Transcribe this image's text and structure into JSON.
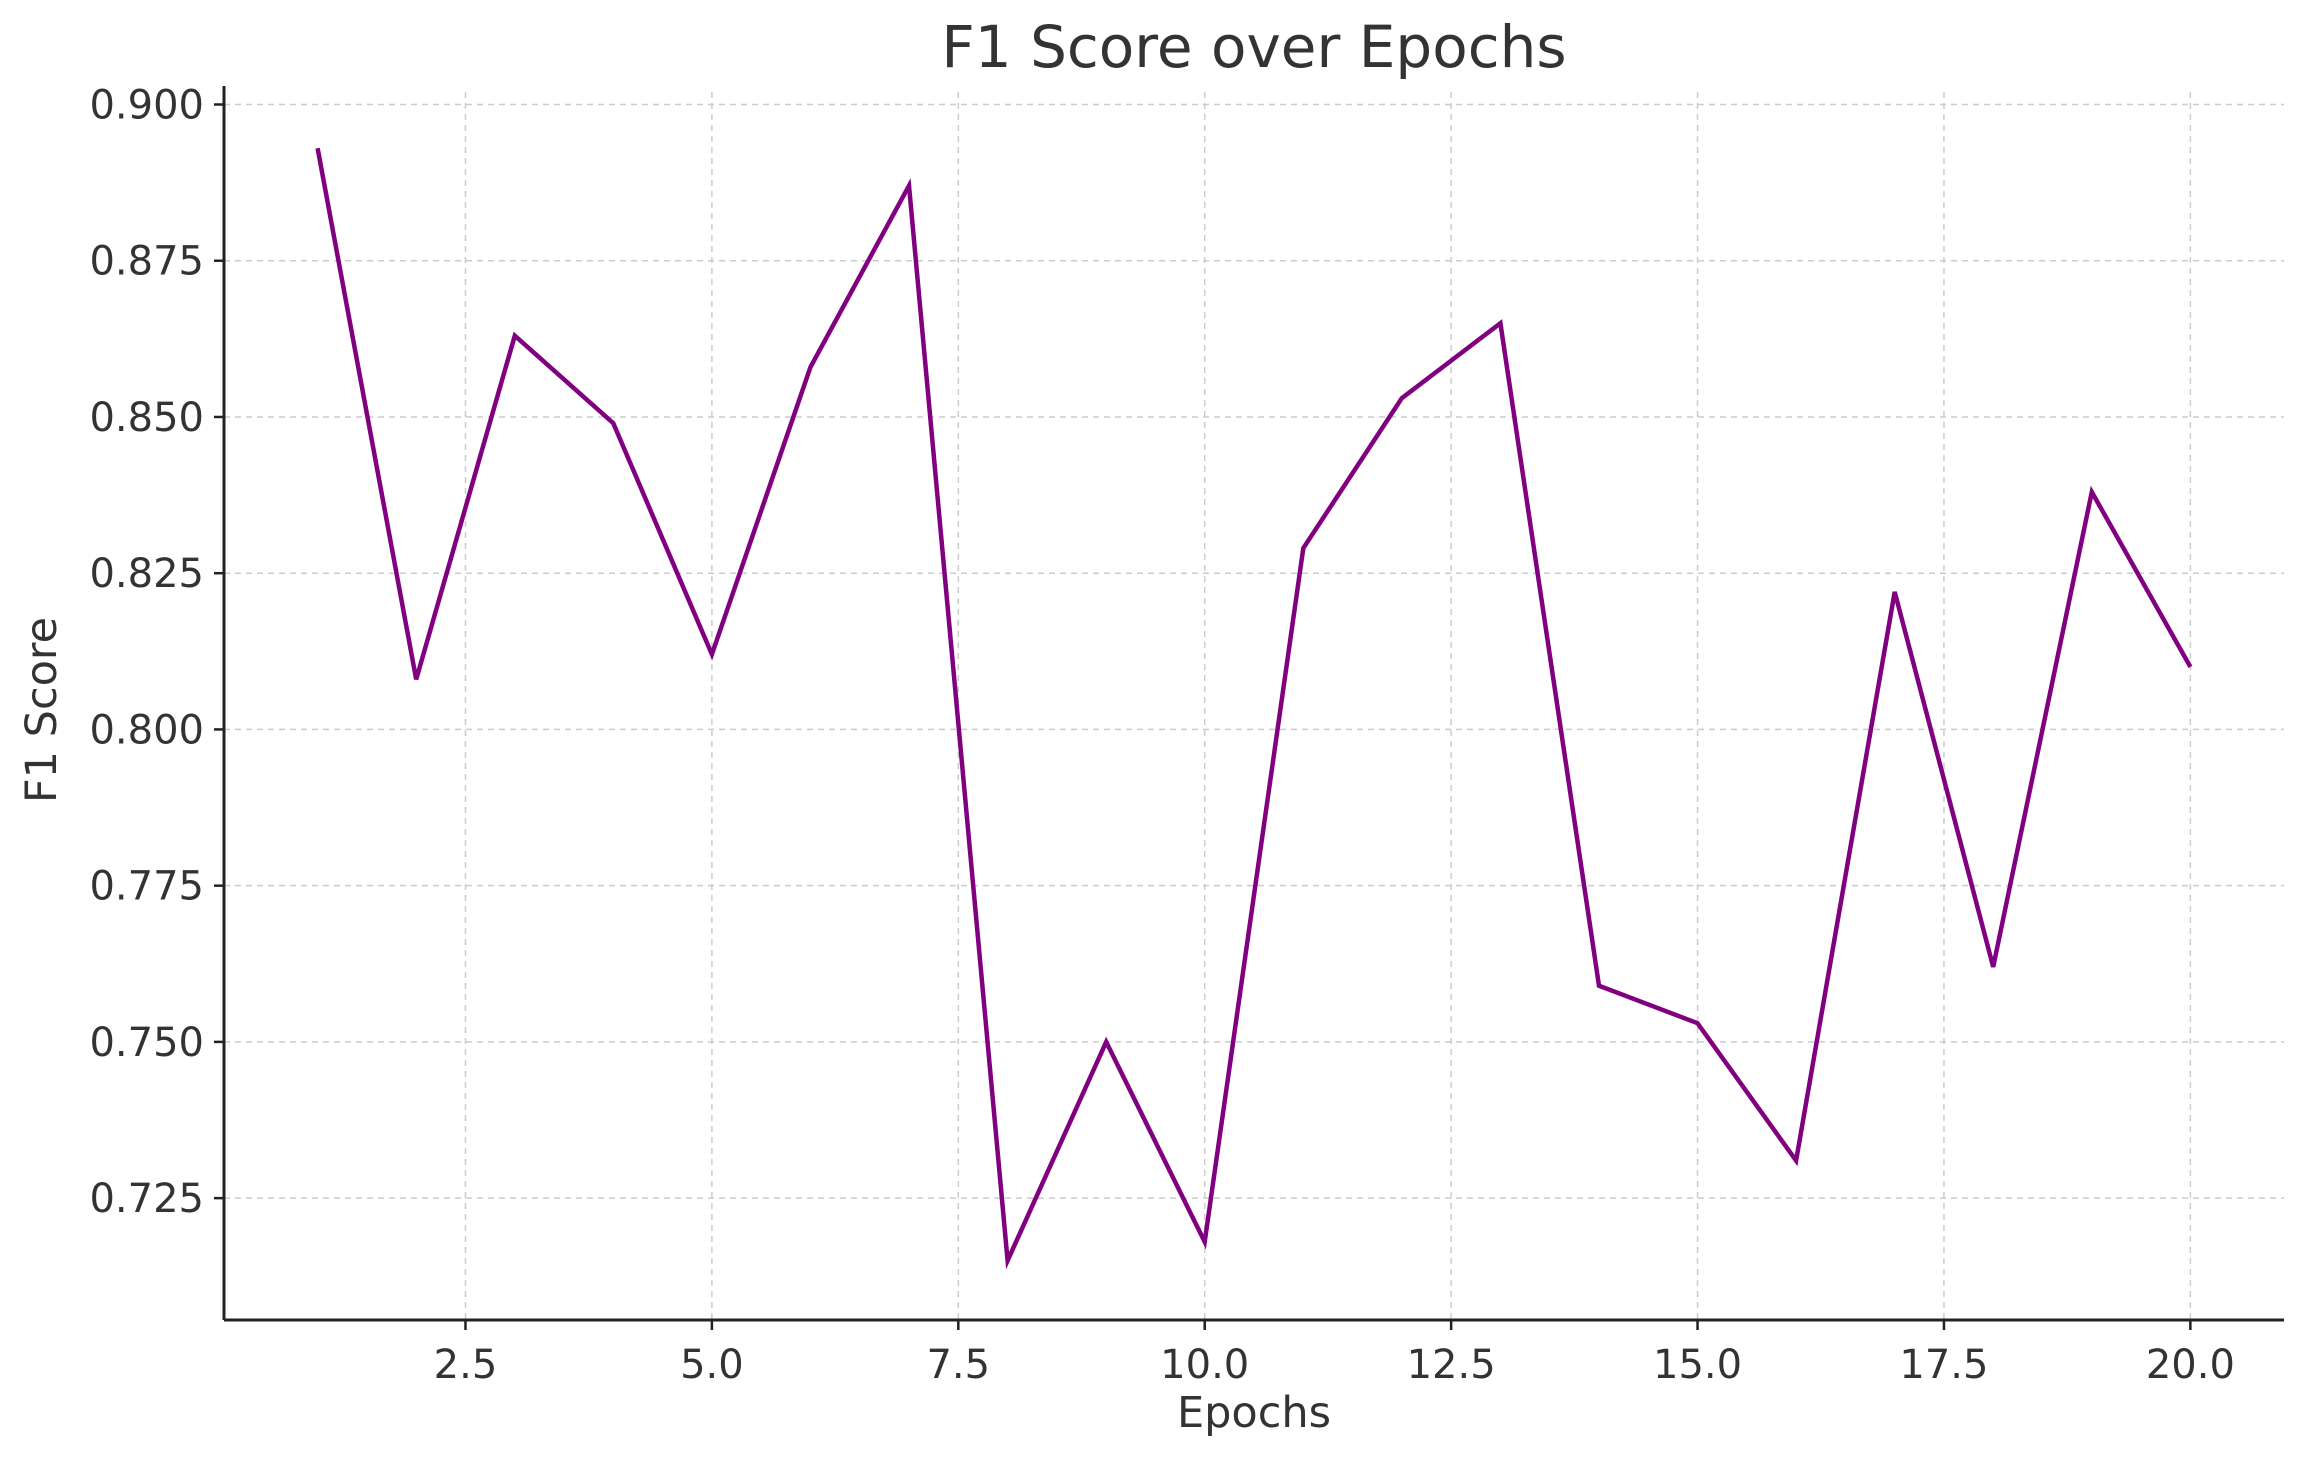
{
  "chart_data": {
    "type": "line",
    "title": "F1 Score over Epochs",
    "xlabel": "Epochs",
    "ylabel": "F1 Score",
    "xlim": [
      0.05,
      20.95
    ],
    "ylim": [
      0.7055,
      0.902
    ],
    "xticks": [
      2.5,
      5.0,
      7.5,
      10.0,
      12.5,
      15.0,
      17.5,
      20.0
    ],
    "xtick_labels": [
      "2.5",
      "5.0",
      "7.5",
      "10.0",
      "12.5",
      "15.0",
      "17.5",
      "20.0"
    ],
    "yticks": [
      0.725,
      0.75,
      0.775,
      0.8,
      0.825,
      0.85,
      0.875,
      0.9
    ],
    "ytick_labels": [
      "0.725",
      "0.750",
      "0.775",
      "0.800",
      "0.825",
      "0.850",
      "0.875",
      "0.900"
    ],
    "grid": true,
    "series": [
      {
        "color": "#800080",
        "x": [
          1,
          2,
          3,
          4,
          5,
          6,
          7,
          8,
          9,
          10,
          11,
          12,
          13,
          14,
          15,
          16,
          17,
          18,
          19,
          20
        ],
        "y": [
          0.893,
          0.808,
          0.863,
          0.849,
          0.812,
          0.858,
          0.887,
          0.715,
          0.75,
          0.718,
          0.829,
          0.853,
          0.865,
          0.759,
          0.753,
          0.731,
          0.822,
          0.762,
          0.838,
          0.81
        ]
      }
    ]
  }
}
